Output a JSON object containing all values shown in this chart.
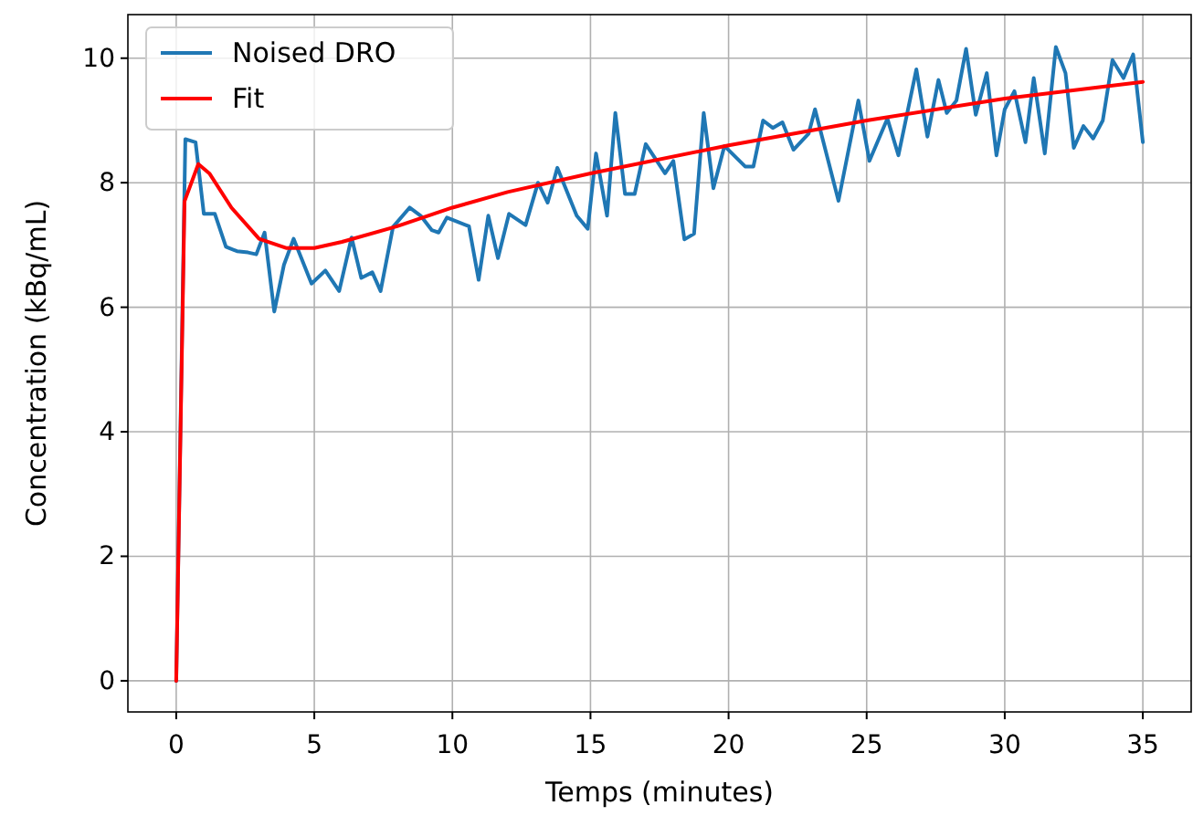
{
  "chart_data": {
    "type": "line",
    "xlabel": "Temps (minutes)",
    "ylabel": "Concentration (kBq/mL)",
    "xlim": [
      -1.75,
      36.75
    ],
    "xticks": [
      0,
      5,
      10,
      15,
      20,
      25,
      30,
      35
    ],
    "ylim": [
      -0.5,
      10.7
    ],
    "yticks": [
      0,
      2,
      4,
      6,
      8,
      10
    ],
    "grid": true,
    "legend": "top left",
    "series": [
      {
        "name": "Noised DRO",
        "color": "#1f77b4",
        "x": [
          0,
          0.33,
          0.7,
          1.0,
          1.4,
          1.8,
          2.2,
          2.6,
          2.9,
          3.2,
          3.55,
          3.9,
          4.25,
          4.9,
          5.4,
          5.9,
          6.35,
          6.7,
          7.1,
          7.4,
          7.85,
          8.45,
          8.85,
          9.25,
          9.5,
          9.8,
          10.6,
          10.95,
          11.3,
          11.65,
          12.05,
          12.65,
          13.1,
          13.45,
          13.8,
          14.5,
          14.9,
          15.2,
          15.6,
          15.9,
          16.25,
          16.6,
          17.0,
          17.7,
          18.0,
          18.4,
          18.75,
          19.1,
          19.45,
          19.85,
          20.6,
          20.9,
          21.25,
          21.6,
          21.95,
          22.35,
          22.9,
          23.13,
          23.98,
          24.7,
          25.1,
          25.75,
          26.15,
          26.8,
          27.2,
          27.6,
          27.9,
          28.25,
          28.6,
          28.95,
          29.35,
          29.7,
          30.0,
          30.35,
          30.75,
          31.05,
          31.45,
          31.85,
          32.2,
          32.5,
          32.85,
          33.2,
          33.55,
          33.9,
          34.3,
          34.65,
          35.0
        ],
        "values": [
          0,
          8.7,
          8.65,
          7.5,
          7.5,
          6.97,
          6.9,
          6.88,
          6.85,
          7.2,
          5.93,
          6.68,
          7.1,
          6.38,
          6.59,
          6.26,
          7.12,
          6.47,
          6.56,
          6.26,
          7.29,
          7.6,
          7.47,
          7.24,
          7.2,
          7.44,
          7.3,
          6.44,
          7.47,
          6.79,
          7.5,
          7.32,
          8.0,
          7.68,
          8.24,
          7.47,
          7.26,
          8.47,
          7.47,
          9.12,
          7.82,
          7.82,
          8.62,
          8.15,
          8.35,
          7.09,
          7.18,
          9.12,
          7.91,
          8.59,
          8.26,
          8.26,
          9.0,
          8.88,
          8.97,
          8.53,
          8.79,
          9.18,
          7.71,
          9.32,
          8.35,
          9.03,
          8.44,
          9.82,
          8.74,
          9.65,
          9.12,
          9.32,
          10.15,
          9.09,
          9.76,
          8.44,
          9.18,
          9.47,
          8.65,
          9.68,
          8.47,
          10.18,
          9.76,
          8.56,
          8.91,
          8.71,
          9.0,
          9.97,
          9.68,
          10.06,
          8.65
        ]
      },
      {
        "name": "Fit",
        "color": "#ff0000",
        "x": [
          0,
          0.3,
          0.8,
          1.2,
          2,
          3,
          4,
          5,
          6,
          8,
          10,
          12,
          15,
          20,
          25,
          30,
          35
        ],
        "values": [
          0,
          7.7,
          8.3,
          8.15,
          7.6,
          7.1,
          6.95,
          6.95,
          7.05,
          7.3,
          7.6,
          7.85,
          8.15,
          8.6,
          9.0,
          9.35,
          9.62
        ]
      }
    ]
  }
}
